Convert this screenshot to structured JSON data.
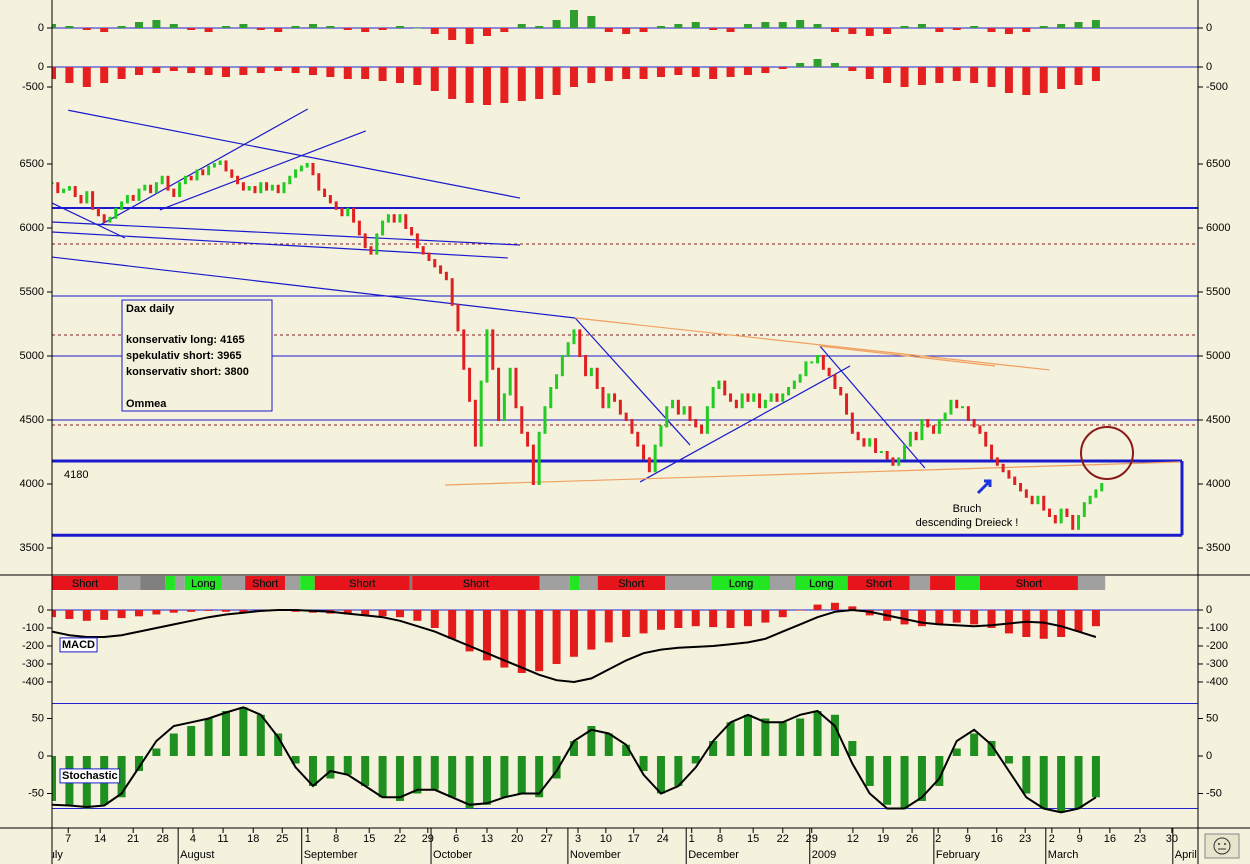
{
  "chart_data": [
    {
      "type": "oscillator",
      "ylim": [
        -500,
        575
      ],
      "yticks": [
        0
      ],
      "every": 3,
      "up_color": "#2e9e2e",
      "down_color": "#e42020",
      "zero_line_color": "#2222cc",
      "values": [
        100,
        50,
        -50,
        -100,
        50,
        150,
        200,
        100,
        -50,
        -100,
        50,
        100,
        -50,
        -100,
        50,
        100,
        50,
        -50,
        -100,
        -50,
        50,
        0,
        -150,
        -300,
        -400,
        -200,
        -100,
        100,
        50,
        200,
        450,
        300,
        -100,
        -150,
        -100,
        50,
        100,
        150,
        -50,
        -100,
        100,
        150,
        150,
        200,
        100,
        -100,
        -150,
        -200,
        -150,
        50,
        100,
        -100,
        -50,
        50,
        -100,
        -150,
        -100,
        50,
        100,
        150,
        200
      ]
    },
    {
      "type": "oscillator",
      "ylim": [
        -1075,
        475
      ],
      "yticks": [
        0,
        -500
      ],
      "every": 3,
      "up_color": "#2e9e2e",
      "down_color": "#e42020",
      "zero_line_color": "#2222cc",
      "values": [
        -300,
        -400,
        -500,
        -400,
        -300,
        -200,
        -150,
        -100,
        -150,
        -200,
        -250,
        -200,
        -150,
        -100,
        -150,
        -200,
        -250,
        -300,
        -300,
        -350,
        -400,
        -450,
        -600,
        -800,
        -900,
        -950,
        -900,
        -850,
        -800,
        -700,
        -500,
        -400,
        -350,
        -300,
        -300,
        -250,
        -200,
        -250,
        -300,
        -250,
        -200,
        -150,
        -50,
        100,
        200,
        100,
        -100,
        -300,
        -400,
        -500,
        -450,
        -400,
        -350,
        -400,
        -500,
        -650,
        -700,
        -650,
        -550,
        -450,
        -350
      ]
    },
    {
      "type": "price",
      "ylim": [
        3289,
        6922
      ],
      "yticks": [
        6500,
        6000,
        5500,
        5000,
        4500,
        4000,
        3500
      ],
      "up_color": "#22cc22",
      "down_color": "#e02020",
      "values": [
        6350,
        6280,
        6300,
        6320,
        6250,
        6200,
        6280,
        6150,
        6100,
        6050,
        6080,
        6150,
        6200,
        6250,
        6220,
        6300,
        6330,
        6280,
        6350,
        6400,
        6300,
        6250,
        6350,
        6400,
        6380,
        6450,
        6420,
        6480,
        6500,
        6520,
        6450,
        6400,
        6350,
        6300,
        6320,
        6280,
        6350,
        6300,
        6330,
        6280,
        6350,
        6400,
        6450,
        6480,
        6500,
        6420,
        6300,
        6250,
        6200,
        6150,
        6100,
        6150,
        6050,
        5950,
        5850,
        5800,
        5950,
        6050,
        6100,
        6050,
        6100,
        6000,
        5950,
        5850,
        5800,
        5750,
        5700,
        5650,
        5600,
        5400,
        5200,
        4900,
        4650,
        4300,
        4800,
        5200,
        4900,
        4500,
        4700,
        4900,
        4600,
        4400,
        4300,
        4000,
        4400,
        4600,
        4750,
        4850,
        5000,
        5100,
        5200,
        5000,
        4850,
        4900,
        4750,
        4600,
        4700,
        4650,
        4550,
        4500,
        4400,
        4300,
        4200,
        4100,
        4300,
        4450,
        4600,
        4650,
        4550,
        4600,
        4500,
        4450,
        4400,
        4600,
        4750,
        4800,
        4700,
        4650,
        4600,
        4700,
        4650,
        4700,
        4600,
        4650,
        4700,
        4650,
        4700,
        4750,
        4800,
        4850,
        4950,
        4950,
        5000,
        4900,
        4850,
        4750,
        4700,
        4550,
        4400,
        4350,
        4300,
        4350,
        4250,
        4250,
        4200,
        4150,
        4200,
        4300,
        4400,
        4350,
        4500,
        4450,
        4400,
        4500,
        4550,
        4650,
        4600,
        4600,
        4500,
        4450,
        4400,
        4300,
        4200,
        4150,
        4100,
        4050,
        4000,
        3950,
        3900,
        3850,
        3900,
        3800,
        3750,
        3700,
        3800,
        3750,
        3650,
        3750,
        3850,
        3900,
        3950,
        4000
      ],
      "hlines": [
        {
          "value": 6156,
          "color": "#1a1acc",
          "width": 2
        },
        {
          "value": 5469,
          "color": "#1a1acc",
          "width": 1
        },
        {
          "value": 5000,
          "color": "#1a1acc",
          "width": 1
        },
        {
          "value": 4500,
          "color": "#1a1acc",
          "width": 1
        },
        {
          "value": 4180,
          "color": "#1a1acc",
          "width": 3,
          "printed": true
        },
        {
          "value": 3600,
          "color": "#1a1acc",
          "width": 3
        },
        {
          "value": 5875,
          "color": "#8b2020",
          "width": 1,
          "dash": "3 3"
        },
        {
          "value": 5164,
          "color": "#8b2020",
          "width": 1,
          "dash": "3 3"
        },
        {
          "value": 4461,
          "color": "#8b2020",
          "width": 1,
          "dash": "3 3"
        }
      ],
      "trendlines": [
        {
          "color": "#1a1acc",
          "points": [
            [
              2.8,
              6920
            ],
            [
              80.7,
              6234
            ]
          ]
        },
        {
          "color": "#1a1acc",
          "points": [
            [
              8.3,
              6023
            ],
            [
              44.1,
              6930
            ]
          ]
        },
        {
          "color": "#1a1acc",
          "points": [
            [
              18.6,
              6141
            ],
            [
              54.1,
              6758
            ]
          ]
        },
        {
          "color": "#1a1acc",
          "points": [
            [
              0,
              6195
            ],
            [
              12.6,
              5922
            ]
          ]
        },
        {
          "color": "#1a1acc",
          "points": [
            [
              0,
              6047
            ],
            [
              80.7,
              5867
            ]
          ]
        },
        {
          "color": "#1a1acc",
          "points": [
            [
              0,
              5969
            ],
            [
              78.6,
              5766
            ]
          ]
        },
        {
          "color": "#1a1acc",
          "points": [
            [
              0,
              5773
            ],
            [
              90.2,
              5297
            ]
          ]
        },
        {
          "color": "#1a1acc",
          "points": [
            [
              90.2,
              5297
            ],
            [
              110,
              4305
            ]
          ]
        },
        {
          "color": "#1a1acc",
          "points": [
            [
              101.4,
              4016
            ],
            [
              137.6,
              4922
            ]
          ]
        },
        {
          "color": "#1a1acc",
          "points": [
            [
              132.4,
              5078
            ],
            [
              150.5,
              4125
            ]
          ]
        },
        {
          "color": "#f0a060",
          "points": [
            [
              90.2,
              5297
            ],
            [
              172,
              4891
            ]
          ]
        },
        {
          "color": "#f0a060",
          "points": [
            [
              132.4,
              5078
            ],
            [
              162.6,
              4922
            ]
          ]
        },
        {
          "color": "#f0a060",
          "points": [
            [
              67.8,
              3992
            ],
            [
              194.5,
              4172
            ]
          ]
        }
      ],
      "info_box": [
        "Dax daily",
        "konservativ long: 4165",
        "spekulativ short: 3965",
        "konservativ short: 3800",
        "Ommea"
      ],
      "note": [
        "Bruch",
        "descending Dreieck !"
      ]
    },
    {
      "type": "signals",
      "segments": [
        {
          "from": 0,
          "to": 11.4,
          "color": "#e8141c",
          "label": "Short"
        },
        {
          "from": 11.4,
          "to": 15.2,
          "color": "#a0a0a0"
        },
        {
          "from": 15.2,
          "to": 19.5,
          "color": "#808080"
        },
        {
          "from": 19.5,
          "to": 21.2,
          "color": "#22e622"
        },
        {
          "from": 21.2,
          "to": 22.9,
          "color": "#a0a0a0"
        },
        {
          "from": 22.9,
          "to": 29.3,
          "color": "#22e622",
          "label": "Long"
        },
        {
          "from": 29.3,
          "to": 33.3,
          "color": "#a0a0a0"
        },
        {
          "from": 33.3,
          "to": 40.2,
          "color": "#e8141c",
          "label": "Short"
        },
        {
          "from": 40.2,
          "to": 42.8,
          "color": "#a0a0a0"
        },
        {
          "from": 42.8,
          "to": 45.3,
          "color": "#22e622"
        },
        {
          "from": 45.3,
          "to": 61.7,
          "color": "#e8141c",
          "label": "Short"
        },
        {
          "from": 61.7,
          "to": 62.1,
          "color": "#808080"
        },
        {
          "from": 62.1,
          "to": 84.1,
          "color": "#e8141c",
          "label": "Short"
        },
        {
          "from": 84.1,
          "to": 89.3,
          "color": "#a0a0a0"
        },
        {
          "from": 89.3,
          "to": 91,
          "color": "#22e622"
        },
        {
          "from": 91,
          "to": 94.1,
          "color": "#a0a0a0"
        },
        {
          "from": 94.1,
          "to": 105.7,
          "color": "#e8141c",
          "label": "Short"
        },
        {
          "from": 105.7,
          "to": 113.8,
          "color": "#a0a0a0"
        },
        {
          "from": 113.8,
          "to": 123.8,
          "color": "#22e622",
          "label": "Long"
        },
        {
          "from": 123.8,
          "to": 128.1,
          "color": "#a0a0a0"
        },
        {
          "from": 128.1,
          "to": 137.2,
          "color": "#22e622",
          "label": "Long"
        },
        {
          "from": 137.2,
          "to": 147.9,
          "color": "#e8141c",
          "label": "Short"
        },
        {
          "from": 147.9,
          "to": 151.4,
          "color": "#a0a0a0"
        },
        {
          "from": 151.4,
          "to": 155.7,
          "color": "#e8141c"
        },
        {
          "from": 155.7,
          "to": 160,
          "color": "#22e622"
        },
        {
          "from": 160,
          "to": 176.9,
          "color": "#e8141c",
          "label": "Short"
        },
        {
          "from": 176.9,
          "to": 181.6,
          "color": "#a0a0a0"
        }
      ]
    },
    {
      "type": "macd",
      "label": "MACD",
      "ylim": [
        -478,
        100
      ],
      "yticks": [
        0,
        -100,
        -200,
        -300,
        -400
      ],
      "every": 3,
      "color": "#e41b1b",
      "line_color": "#000000",
      "zero_line_color": "#2222cc",
      "histogram": [
        -40,
        -50,
        -60,
        -55,
        -45,
        -35,
        -25,
        -15,
        -10,
        -5,
        -10,
        -15,
        -10,
        -5,
        -10,
        -15,
        -20,
        -25,
        -30,
        -35,
        -40,
        -60,
        -100,
        -160,
        -230,
        -280,
        -320,
        -350,
        -340,
        -300,
        -260,
        -220,
        -180,
        -150,
        -130,
        -110,
        -100,
        -90,
        -95,
        -100,
        -90,
        -70,
        -40,
        0,
        30,
        40,
        20,
        -30,
        -60,
        -80,
        -90,
        -80,
        -70,
        -80,
        -100,
        -130,
        -150,
        -160,
        -150,
        -120,
        -90
      ],
      "line": [
        -120,
        -140,
        -150,
        -150,
        -140,
        -120,
        -100,
        -80,
        -60,
        -40,
        -25,
        -15,
        -5,
        0,
        0,
        -5,
        -10,
        -20,
        -30,
        -40,
        -60,
        -90,
        -120,
        -160,
        -200,
        -240,
        -280,
        -320,
        -360,
        -390,
        -400,
        -380,
        -330,
        -280,
        -240,
        -220,
        -210,
        -205,
        -200,
        -190,
        -180,
        -160,
        -120,
        -80,
        -40,
        -10,
        0,
        -10,
        -30,
        -50,
        -70,
        -80,
        -85,
        -90,
        -85,
        -75,
        -65,
        -70,
        -90,
        -120,
        -150
      ]
    },
    {
      "type": "stochastic",
      "label": "Stochastic",
      "ylim": [
        -96,
        80
      ],
      "yticks": [
        50,
        0,
        -50
      ],
      "levels": [
        70,
        -70
      ],
      "every": 3,
      "color": "#1f8f1f",
      "line_color": "#000000",
      "level_color": "#2222cc",
      "histogram": [
        -60,
        -65,
        -70,
        -65,
        -55,
        -20,
        10,
        30,
        40,
        50,
        60,
        65,
        55,
        30,
        -10,
        -40,
        -30,
        -25,
        -40,
        -55,
        -60,
        -50,
        -45,
        -55,
        -70,
        -65,
        -55,
        -50,
        -55,
        -30,
        20,
        40,
        30,
        15,
        -20,
        -50,
        -40,
        -10,
        20,
        45,
        55,
        50,
        45,
        50,
        60,
        55,
        20,
        -40,
        -65,
        -70,
        -60,
        -40,
        10,
        30,
        20,
        -10,
        -50,
        -70,
        -75,
        -70,
        -55
      ],
      "line": [
        -65,
        -66,
        -68,
        -66,
        -50,
        -15,
        20,
        40,
        45,
        50,
        58,
        65,
        55,
        25,
        -15,
        -40,
        -20,
        -25,
        -40,
        -55,
        -55,
        -45,
        -45,
        -55,
        -65,
        -63,
        -55,
        -50,
        -50,
        -20,
        20,
        35,
        30,
        15,
        -25,
        -50,
        -40,
        -15,
        20,
        45,
        55,
        45,
        45,
        55,
        60,
        40,
        -10,
        -50,
        -70,
        -70,
        -55,
        -30,
        20,
        35,
        15,
        -20,
        -55,
        -70,
        -75,
        -70,
        -55
      ]
    }
  ],
  "x_axis": {
    "xlim": [
      0,
      197.6
    ],
    "xticks": [
      {
        "value": 2.8,
        "label": "7"
      },
      {
        "value": 8.3,
        "label": "14"
      },
      {
        "value": 14,
        "label": "21"
      },
      {
        "value": 19.1,
        "label": "28"
      },
      {
        "value": 24.3,
        "label": "4"
      },
      {
        "value": 29.5,
        "label": "11"
      },
      {
        "value": 34.7,
        "label": "18"
      },
      {
        "value": 39.7,
        "label": "25"
      },
      {
        "value": 44.1,
        "label": "1"
      },
      {
        "value": 49,
        "label": "8"
      },
      {
        "value": 54.7,
        "label": "15"
      },
      {
        "value": 60,
        "label": "22"
      },
      {
        "value": 64.8,
        "label": "29"
      },
      {
        "value": 69.7,
        "label": "6"
      },
      {
        "value": 75,
        "label": "13"
      },
      {
        "value": 80.2,
        "label": "20"
      },
      {
        "value": 85.3,
        "label": "27"
      },
      {
        "value": 90.7,
        "label": "3"
      },
      {
        "value": 95.5,
        "label": "10"
      },
      {
        "value": 100.3,
        "label": "17"
      },
      {
        "value": 105.3,
        "label": "24"
      },
      {
        "value": 110.3,
        "label": "1"
      },
      {
        "value": 115.2,
        "label": "8"
      },
      {
        "value": 120.9,
        "label": "15"
      },
      {
        "value": 126,
        "label": "22"
      },
      {
        "value": 131,
        "label": "29"
      },
      {
        "value": 138.1,
        "label": "12"
      },
      {
        "value": 143.3,
        "label": "19"
      },
      {
        "value": 148.3,
        "label": "26"
      },
      {
        "value": 152.8,
        "label": "2"
      },
      {
        "value": 157.9,
        "label": "9"
      },
      {
        "value": 162.9,
        "label": "16"
      },
      {
        "value": 167.8,
        "label": "23"
      },
      {
        "value": 172.4,
        "label": "2"
      },
      {
        "value": 177.2,
        "label": "9"
      },
      {
        "value": 182.4,
        "label": "16"
      },
      {
        "value": 187.6,
        "label": "23"
      },
      {
        "value": 193.1,
        "label": "30"
      }
    ],
    "months": [
      {
        "value": -1.5,
        "label": "July"
      },
      {
        "value": 22.1,
        "label": "August"
      },
      {
        "value": 43.4,
        "label": "September"
      },
      {
        "value": 65.7,
        "label": "October"
      },
      {
        "value": 89.3,
        "label": "November"
      },
      {
        "value": 109.7,
        "label": "December"
      },
      {
        "value": 131,
        "label": "2009"
      },
      {
        "value": 152.4,
        "label": "February"
      },
      {
        "value": 171.7,
        "label": "March"
      },
      {
        "value": 193.6,
        "label": "April"
      }
    ]
  }
}
